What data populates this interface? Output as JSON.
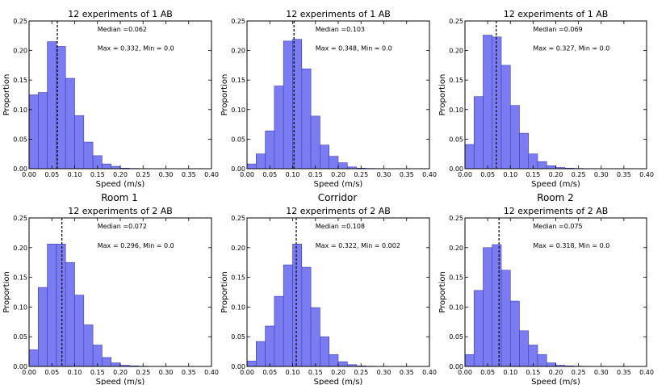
{
  "figure": {
    "column_titles": [
      "Room 1",
      "Corridor",
      "Room 2"
    ],
    "colors": {
      "bar_fill": "#7b7bf2",
      "bar_stroke": "#3c3cb4",
      "median_line": "#000000",
      "axis": "#000000"
    }
  },
  "chart_data": [
    {
      "type": "bar",
      "title": "12 experiments of 1 AB",
      "xlabel": "Speed (m/s)",
      "ylabel": "Proportion",
      "xlim": [
        0,
        0.4
      ],
      "ylim": [
        0,
        0.25
      ],
      "xticks": [
        "0.00",
        "0.05",
        "0.10",
        "0.15",
        "0.20",
        "0.25",
        "0.30",
        "0.35",
        "0.40"
      ],
      "yticks": [
        "0.00",
        "0.05",
        "0.10",
        "0.15",
        "0.20",
        "0.25"
      ],
      "bin_width": 0.02,
      "bin_starts": [
        0.0,
        0.02,
        0.04,
        0.06,
        0.08,
        0.1,
        0.12,
        0.14,
        0.16,
        0.18,
        0.2,
        0.22,
        0.24,
        0.26,
        0.28,
        0.3,
        0.32
      ],
      "values": [
        0.125,
        0.129,
        0.215,
        0.207,
        0.153,
        0.09,
        0.045,
        0.022,
        0.008,
        0.004,
        0.001,
        0.0005,
        0.0003,
        0.0002,
        0.0001,
        0.0001,
        0.0001
      ],
      "median": 0.062,
      "annotation_median": "Median =0.062",
      "annotation_range": "Max = 0.332, Min = 0.0"
    },
    {
      "type": "bar",
      "title": "12 experiments of 1 AB",
      "xlabel": "Speed (m/s)",
      "ylabel": "Proportion",
      "xlim": [
        0,
        0.4
      ],
      "ylim": [
        0,
        0.25
      ],
      "xticks": [
        "0.00",
        "0.05",
        "0.10",
        "0.15",
        "0.20",
        "0.25",
        "0.30",
        "0.35",
        "0.40"
      ],
      "yticks": [
        "0.00",
        "0.05",
        "0.10",
        "0.15",
        "0.20",
        "0.25"
      ],
      "bin_width": 0.02,
      "bin_starts": [
        0.0,
        0.02,
        0.04,
        0.06,
        0.08,
        0.1,
        0.12,
        0.14,
        0.16,
        0.18,
        0.2,
        0.22,
        0.24,
        0.26,
        0.28,
        0.3,
        0.32
      ],
      "values": [
        0.008,
        0.025,
        0.064,
        0.14,
        0.216,
        0.219,
        0.169,
        0.089,
        0.04,
        0.021,
        0.01,
        0.003,
        0.001,
        0.0005,
        0.0003,
        0.0002,
        0.0001
      ],
      "median": 0.103,
      "annotation_median": "Median =0.103",
      "annotation_range": "Max = 0.348, Min = 0.0"
    },
    {
      "type": "bar",
      "title": "12 experiments of 1 AB",
      "xlabel": "Speed (m/s)",
      "ylabel": "Proportion",
      "xlim": [
        0,
        0.4
      ],
      "ylim": [
        0,
        0.25
      ],
      "xticks": [
        "0.00",
        "0.05",
        "0.10",
        "0.15",
        "0.20",
        "0.25",
        "0.30",
        "0.35",
        "0.40"
      ],
      "yticks": [
        "0.00",
        "0.05",
        "0.10",
        "0.15",
        "0.20",
        "0.25"
      ],
      "bin_width": 0.02,
      "bin_starts": [
        0.0,
        0.02,
        0.04,
        0.06,
        0.08,
        0.1,
        0.12,
        0.14,
        0.16,
        0.18,
        0.2,
        0.22,
        0.24,
        0.26,
        0.28,
        0.3,
        0.32
      ],
      "values": [
        0.041,
        0.122,
        0.226,
        0.223,
        0.175,
        0.107,
        0.06,
        0.025,
        0.012,
        0.005,
        0.002,
        0.001,
        0.0005,
        0.0003,
        0.0002,
        0.0001,
        0.0001
      ],
      "median": 0.069,
      "annotation_median": "Median =0.069",
      "annotation_range": "Max = 0.327, Min = 0.0"
    },
    {
      "type": "bar",
      "title": "12 experiments of 2 AB",
      "xlabel": "Speed (m/s)",
      "ylabel": "Proportion",
      "xlim": [
        0,
        0.4
      ],
      "ylim": [
        0,
        0.25
      ],
      "xticks": [
        "0.00",
        "0.05",
        "0.10",
        "0.15",
        "0.20",
        "0.25",
        "0.30",
        "0.35",
        "0.40"
      ],
      "yticks": [
        "0.00",
        "0.05",
        "0.10",
        "0.15",
        "0.20",
        "0.25"
      ],
      "bin_width": 0.02,
      "bin_starts": [
        0.0,
        0.02,
        0.04,
        0.06,
        0.08,
        0.1,
        0.12,
        0.14,
        0.16,
        0.18,
        0.2,
        0.22,
        0.24,
        0.26,
        0.28,
        0.3
      ],
      "values": [
        0.028,
        0.133,
        0.206,
        0.206,
        0.175,
        0.12,
        0.07,
        0.036,
        0.015,
        0.006,
        0.002,
        0.001,
        0.0005,
        0.0003,
        0.0002,
        0.0001
      ],
      "median": 0.072,
      "annotation_median": "Median =0.072",
      "annotation_range": "Max = 0.296, Min = 0.0"
    },
    {
      "type": "bar",
      "title": "12 experiments of 2 AB",
      "xlabel": "Speed (m/s)",
      "ylabel": "Proportion",
      "xlim": [
        0,
        0.4
      ],
      "ylim": [
        0,
        0.25
      ],
      "xticks": [
        "0.00",
        "0.05",
        "0.10",
        "0.15",
        "0.20",
        "0.25",
        "0.30",
        "0.35",
        "0.40"
      ],
      "yticks": [
        "0.00",
        "0.05",
        "0.10",
        "0.15",
        "0.20",
        "0.25"
      ],
      "bin_width": 0.02,
      "bin_starts": [
        0.0,
        0.02,
        0.04,
        0.06,
        0.08,
        0.1,
        0.12,
        0.14,
        0.16,
        0.18,
        0.2,
        0.22,
        0.24,
        0.26,
        0.28,
        0.3,
        0.32
      ],
      "values": [
        0.009,
        0.042,
        0.068,
        0.118,
        0.171,
        0.206,
        0.167,
        0.099,
        0.05,
        0.02,
        0.008,
        0.003,
        0.001,
        0.0005,
        0.0003,
        0.0002,
        0.0001
      ],
      "median": 0.108,
      "annotation_median": "Median =0.108",
      "annotation_range": "Max = 0.322, Min = 0.002"
    },
    {
      "type": "bar",
      "title": "12 experiments of 2 AB",
      "xlabel": "Speed (m/s)",
      "ylabel": "Proportion",
      "xlim": [
        0,
        0.4
      ],
      "ylim": [
        0,
        0.25
      ],
      "xticks": [
        "0.00",
        "0.05",
        "0.10",
        "0.15",
        "0.20",
        "0.25",
        "0.30",
        "0.35",
        "0.40"
      ],
      "yticks": [
        "0.00",
        "0.05",
        "0.10",
        "0.15",
        "0.20",
        "0.25"
      ],
      "bin_width": 0.02,
      "bin_starts": [
        0.0,
        0.02,
        0.04,
        0.06,
        0.08,
        0.1,
        0.12,
        0.14,
        0.16,
        0.18,
        0.2,
        0.22,
        0.24,
        0.26,
        0.28,
        0.3,
        0.32
      ],
      "values": [
        0.02,
        0.128,
        0.2,
        0.205,
        0.162,
        0.11,
        0.06,
        0.036,
        0.02,
        0.006,
        0.002,
        0.001,
        0.0005,
        0.0003,
        0.0002,
        0.0001,
        0.0001
      ],
      "median": 0.075,
      "annotation_median": "Median =0.075",
      "annotation_range": "Max = 0.318, Min = 0.0"
    }
  ]
}
